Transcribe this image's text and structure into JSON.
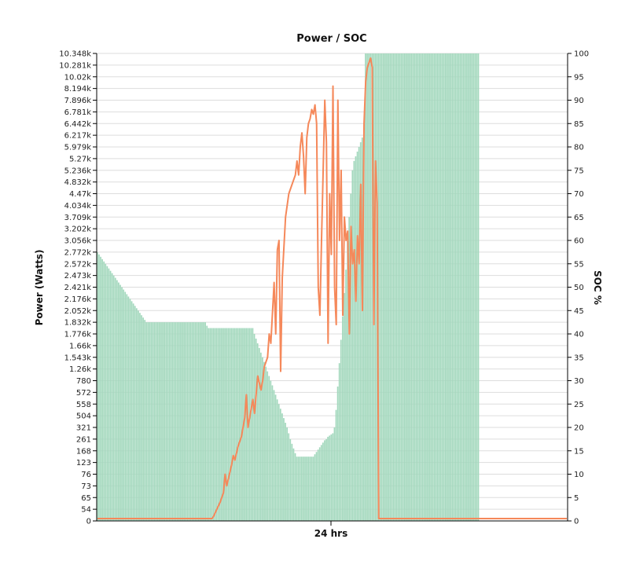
{
  "chart_data": {
    "type": "bar",
    "title": "Power / SOC",
    "xlabel": "24 hrs",
    "ylabel_left": "Power (Watts)",
    "ylabel_right": "SOC %",
    "grid": true,
    "colors": {
      "power_bars": "#a3d8bd",
      "soc_line": "#f5885a",
      "gridline": "#dddddd"
    },
    "left_tick_labels": [
      "0",
      "54",
      "65",
      "73",
      "76",
      "123",
      "168",
      "261",
      "321",
      "504",
      "558",
      "572",
      "780",
      "1.26k",
      "1.543k",
      "1.66k",
      "1.776k",
      "1.832k",
      "2.052k",
      "2.176k",
      "2.421k",
      "2.473k",
      "2.572k",
      "2.772k",
      "3.056k",
      "3.202k",
      "3.709k",
      "4.034k",
      "4.47k",
      "4.832k",
      "5.236k",
      "5.27k",
      "5.979k",
      "6.217k",
      "6.442k",
      "6.781k",
      "7.896k",
      "8.194k",
      "10.02k",
      "10.281k",
      "10.348k"
    ],
    "right_tick_labels": [
      "0",
      "5",
      "10",
      "15",
      "20",
      "25",
      "30",
      "35",
      "40",
      "45",
      "50",
      "55",
      "60",
      "65",
      "70",
      "75",
      "80",
      "85",
      "90",
      "95",
      "100"
    ],
    "right_ylim": [
      0,
      100
    ],
    "x_count": 288,
    "power_series": {
      "name": "Power",
      "note_scale": "left axis index (tick position 0-40)",
      "values": [
        23.0,
        22.8,
        22.6,
        22.4,
        22.2,
        22.0,
        21.8,
        21.6,
        21.4,
        21.2,
        21.0,
        20.8,
        20.6,
        20.4,
        20.2,
        20.0,
        19.8,
        19.6,
        19.4,
        19.2,
        19.0,
        18.8,
        18.6,
        18.4,
        18.2,
        18.0,
        17.8,
        17.6,
        17.4,
        17.2,
        17.0,
        17.0,
        17.0,
        17.0,
        17.0,
        17.0,
        17.0,
        17.0,
        17.0,
        17.0,
        17.0,
        17.0,
        17.0,
        17.0,
        17.0,
        17.0,
        17.0,
        17.0,
        17.0,
        17.0,
        17.0,
        17.0,
        17.0,
        17.0,
        17.0,
        17.0,
        17.0,
        17.0,
        17.0,
        17.0,
        17.0,
        17.0,
        17.0,
        17.0,
        17.0,
        17.0,
        17.0,
        16.7,
        16.5,
        16.5,
        16.5,
        16.5,
        16.5,
        16.5,
        16.5,
        16.5,
        16.5,
        16.5,
        16.5,
        16.5,
        16.5,
        16.5,
        16.5,
        16.5,
        16.5,
        16.5,
        16.5,
        16.5,
        16.5,
        16.5,
        16.5,
        16.5,
        16.5,
        16.5,
        16.5,
        16.5,
        16.0,
        15.6,
        15.2,
        14.8,
        14.4,
        14.0,
        13.6,
        13.2,
        12.8,
        12.4,
        12.0,
        11.6,
        11.2,
        10.8,
        10.4,
        10.0,
        9.6,
        9.2,
        8.8,
        8.4,
        8.0,
        7.5,
        7.0,
        6.6,
        6.2,
        5.8,
        5.5,
        5.5,
        5.5,
        5.5,
        5.5,
        5.5,
        5.5,
        5.5,
        5.5,
        5.5,
        5.5,
        5.7,
        5.9,
        6.1,
        6.3,
        6.5,
        6.7,
        6.9,
        7.0,
        7.2,
        7.3,
        7.4,
        7.5,
        8.0,
        9.5,
        11.5,
        13.5,
        15.5,
        17.5,
        19.5,
        21.5,
        24.0,
        26.0,
        28.0,
        30.0,
        30.8,
        31.2,
        31.6,
        32.0,
        32.4,
        32.8,
        33.0,
        40,
        40,
        40,
        40,
        40,
        40,
        40,
        40,
        40,
        40,
        40,
        40,
        40,
        40,
        40,
        40,
        40,
        40,
        40,
        40,
        40,
        40,
        40,
        40,
        40,
        40,
        40,
        40,
        40,
        40,
        40,
        40,
        40,
        40,
        40,
        40,
        40,
        40,
        40,
        40,
        40,
        40,
        40,
        40,
        40,
        40,
        40,
        40,
        40,
        40,
        40,
        40,
        40,
        40,
        40,
        40,
        40,
        40,
        40,
        40,
        40,
        40,
        40,
        40,
        40,
        40,
        40,
        40,
        40,
        40,
        0,
        0,
        0,
        0,
        0,
        0,
        0,
        0,
        0,
        0,
        0,
        0,
        0,
        0,
        0,
        0,
        0,
        0,
        0,
        0,
        0,
        0,
        0,
        0,
        0,
        0,
        0,
        0,
        0,
        0,
        0,
        0,
        0,
        0,
        0,
        0,
        0,
        0,
        0,
        0,
        0,
        0,
        0,
        0,
        0,
        0,
        0,
        0,
        0,
        0,
        0,
        0,
        0,
        0,
        0,
        0,
        0,
        0,
        0,
        0,
        0,
        0,
        0,
        0,
        0,
        0,
        0,
        0,
        0,
        0,
        0,
        0,
        0,
        0,
        0,
        0,
        0,
        0,
        0,
        0,
        0,
        0,
        0,
        0,
        0,
        0
      ]
    },
    "soc_series": {
      "name": "SOC",
      "points": [
        [
          0,
          0.5
        ],
        [
          70,
          0.5
        ],
        [
          71,
          1
        ],
        [
          73,
          2.5
        ],
        [
          75,
          4
        ],
        [
          77,
          6
        ],
        [
          78,
          10
        ],
        [
          79,
          7.5
        ],
        [
          80,
          9
        ],
        [
          82,
          12
        ],
        [
          83,
          14
        ],
        [
          84,
          13
        ],
        [
          86,
          16
        ],
        [
          88,
          18
        ],
        [
          89,
          20
        ],
        [
          90,
          22
        ],
        [
          91,
          27
        ],
        [
          92,
          20
        ],
        [
          94,
          24
        ],
        [
          95,
          26
        ],
        [
          96,
          23
        ],
        [
          97,
          27
        ],
        [
          98,
          31
        ],
        [
          100,
          28
        ],
        [
          101,
          30
        ],
        [
          102,
          33
        ],
        [
          104,
          35
        ],
        [
          105,
          40
        ],
        [
          106,
          38
        ],
        [
          108,
          51
        ],
        [
          109,
          40
        ],
        [
          110,
          58
        ],
        [
          111,
          60
        ],
        [
          112,
          32
        ],
        [
          113,
          52
        ],
        [
          115,
          65
        ],
        [
          117,
          70
        ],
        [
          119,
          72
        ],
        [
          121,
          74
        ],
        [
          122,
          77
        ],
        [
          123,
          74
        ],
        [
          124,
          80
        ],
        [
          125,
          83
        ],
        [
          126,
          78
        ],
        [
          127,
          70
        ],
        [
          128,
          82
        ],
        [
          129,
          85
        ],
        [
          130,
          86
        ],
        [
          131,
          88
        ],
        [
          132,
          87
        ],
        [
          133,
          89
        ],
        [
          134,
          85
        ],
        [
          135,
          50
        ],
        [
          136,
          44
        ],
        [
          137,
          60
        ],
        [
          138,
          75
        ],
        [
          139,
          90
        ],
        [
          140,
          81
        ],
        [
          141,
          38
        ],
        [
          142,
          70
        ],
        [
          143,
          57
        ],
        [
          144,
          93
        ],
        [
          145,
          50
        ],
        [
          146,
          42
        ],
        [
          147,
          90
        ],
        [
          148,
          60
        ],
        [
          149,
          75
        ],
        [
          150,
          44
        ],
        [
          151,
          65
        ],
        [
          152,
          60
        ],
        [
          153,
          62
        ],
        [
          154,
          40
        ],
        [
          155,
          63
        ],
        [
          156,
          55
        ],
        [
          157,
          58
        ],
        [
          158,
          47
        ],
        [
          159,
          61
        ],
        [
          160,
          55
        ],
        [
          161,
          72
        ],
        [
          162,
          45
        ],
        [
          163,
          85
        ],
        [
          164,
          94
        ],
        [
          165,
          97
        ],
        [
          166,
          98
        ],
        [
          167,
          99
        ],
        [
          168,
          97
        ],
        [
          169,
          42
        ],
        [
          170,
          77
        ],
        [
          171,
          68
        ],
        [
          172,
          0.5
        ],
        [
          287,
          0.5
        ]
      ]
    }
  }
}
